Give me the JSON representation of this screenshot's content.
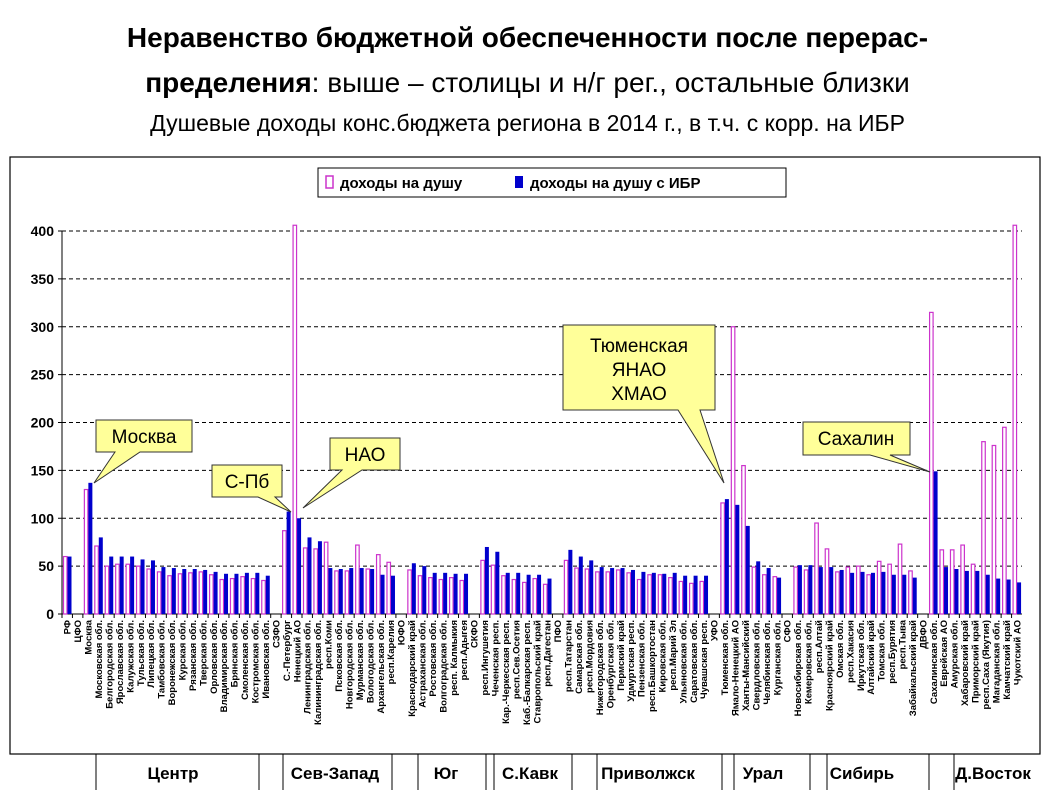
{
  "title": {
    "line1": "Неравенство бюджетной обеспеченности после перерас-",
    "line2_bold": "пределения",
    "line2_rest": ": выше – столицы и н/г рег., остальные близки",
    "subtitle": "Душевые доходы конс.бюджета региона в 2014 г., в т.ч. с корр. на ИБР"
  },
  "callouts": {
    "moscow": "Москва",
    "spb": "С-Пб",
    "nao": "НАО",
    "tyumen": [
      "Тюменская",
      "ЯНАО",
      "ХМАО"
    ],
    "sakhalin": "Сахалин"
  },
  "regions": [
    "Центр",
    "Сев-Запад",
    "Юг",
    "С.Кавк",
    "Приволжск",
    "Урал",
    "Сибирь",
    "Д.Восток"
  ],
  "colors": {
    "series1": "#cc33cc",
    "series2": "#0000cc",
    "callout": "#ffff99"
  },
  "chart_data": {
    "type": "bar",
    "title": "Душевые доходы конс.бюджета региона в 2014 г., в т.ч. с корр. на ИБР",
    "xlabel": "",
    "ylabel": "",
    "ylim": [
      0,
      400
    ],
    "yticks": [
      0,
      50,
      100,
      150,
      200,
      250,
      300,
      350,
      400
    ],
    "grid": true,
    "legend_position": "top-center",
    "categories": [
      "РФ",
      "ЦФО",
      "Москва",
      "Московская обл.",
      "Белгородская обл.",
      "Ярославская обл.",
      "Калужская обл.",
      "Тульская обл.",
      "Липецкая обл.",
      "Тамбовская обл.",
      "Воронежская обл.",
      "Курская обл.",
      "Рязанская обл.",
      "Тверская обл.",
      "Орловская обл.",
      "Владимирская обл.",
      "Брянская обл.",
      "Смоленская обл.",
      "Костромская обл.",
      "Ивановская обл.",
      "СЗФО",
      "С.-Петербург",
      "Ненецкий АО",
      "Ленинградская обл.",
      "Калининградская обл.",
      "респ.Коми",
      "Псковская обл.",
      "Новгородская обл.",
      "Мурманская обл.",
      "Вологодская обл.",
      "Архангельская обл.",
      "респ.Карелия",
      "ЮФО",
      "Краснодарский край",
      "Астраханская обл.",
      "Ростовская обл.",
      "Волгоградская обл.",
      "респ. Калмыкия",
      "респ.Адыгея",
      "СКФО",
      "респ.Ингушетия",
      "Чеченская респ.",
      "Кар.-Черкесская респ.",
      "респ.Сев.Осетия",
      "Каб.-Балкарская респ.",
      "Ставропольский край",
      "респ.Дагестан",
      "ПФО",
      "респ.Татарстан",
      "Самарская обл.",
      "респ.Мордовия",
      "Нижегородская обл.",
      "Оренбургская обл.",
      "Пермский край",
      "Удмуртская респ.",
      "Пензенская обл.",
      "респ.Башкортостан",
      "Кировская обл.",
      "респ.Марий Эл",
      "Ульяновская обл.",
      "Саратовская обл.",
      "Чувашская респ.",
      "УФО",
      "Тюменская обл.",
      "Ямало-Ненецкий АО",
      "Ханты-Мансийский",
      "Свердловская обл.",
      "Челябинская обл.",
      "Курганская обл.",
      "СФО",
      "Новосибирская обл.",
      "Кемеровская обл.",
      "респ.Алтай",
      "Красноярский край",
      "Омская обл.",
      "респ.Хакасия",
      "Иркутская обл.",
      "Алтайский край",
      "Томская обл.",
      "респ.Бурятия",
      "респ.Тыва",
      "Забайкальский край",
      "ДВФО",
      "Сахалинская обл.",
      "Еврейская АО",
      "Амурская обл.",
      "Хабаровский край",
      "Приморский край",
      "респ.Саха (Якутия)",
      "Магаданская обл.",
      "Камчатский край",
      "Чукотский АО"
    ],
    "series": [
      {
        "name": "доходы на душу",
        "values": [
          60,
          null,
          130,
          71,
          50,
          52,
          52,
          50,
          47,
          44,
          40,
          42,
          43,
          44,
          41,
          36,
          37,
          39,
          37,
          35,
          null,
          87,
          410,
          69,
          68,
          75,
          45,
          45,
          72,
          47,
          62,
          54,
          null,
          46,
          40,
          38,
          36,
          38,
          35,
          null,
          56,
          51,
          40,
          36,
          33,
          37,
          31,
          null,
          56,
          48,
          47,
          44,
          44,
          46,
          43,
          36,
          41,
          41,
          38,
          34,
          32,
          34,
          null,
          116,
          300,
          155,
          49,
          41,
          39,
          null,
          49,
          46,
          95,
          68,
          44,
          49,
          50,
          41,
          55,
          52,
          73,
          45,
          null,
          315,
          67,
          67,
          72,
          52,
          180,
          176,
          195,
          410
        ]
      },
      {
        "name": "доходы на душу с ИБР",
        "values": [
          60,
          null,
          137,
          80,
          60,
          60,
          60,
          57,
          56,
          49,
          48,
          47,
          47,
          46,
          44,
          42,
          42,
          43,
          43,
          40,
          null,
          107,
          100,
          80,
          76,
          48,
          47,
          48,
          48,
          47,
          41,
          40,
          null,
          53,
          50,
          43,
          43,
          42,
          42,
          null,
          70,
          65,
          43,
          43,
          41,
          41,
          37,
          null,
          67,
          60,
          56,
          49,
          48,
          48,
          46,
          44,
          43,
          42,
          43,
          40,
          40,
          40,
          null,
          120,
          114,
          92,
          55,
          48,
          38,
          null,
          51,
          51,
          49,
          49,
          46,
          43,
          44,
          43,
          44,
          41,
          41,
          38,
          null,
          149,
          49,
          47,
          45,
          45,
          41,
          37,
          36,
          33
        ]
      }
    ]
  }
}
